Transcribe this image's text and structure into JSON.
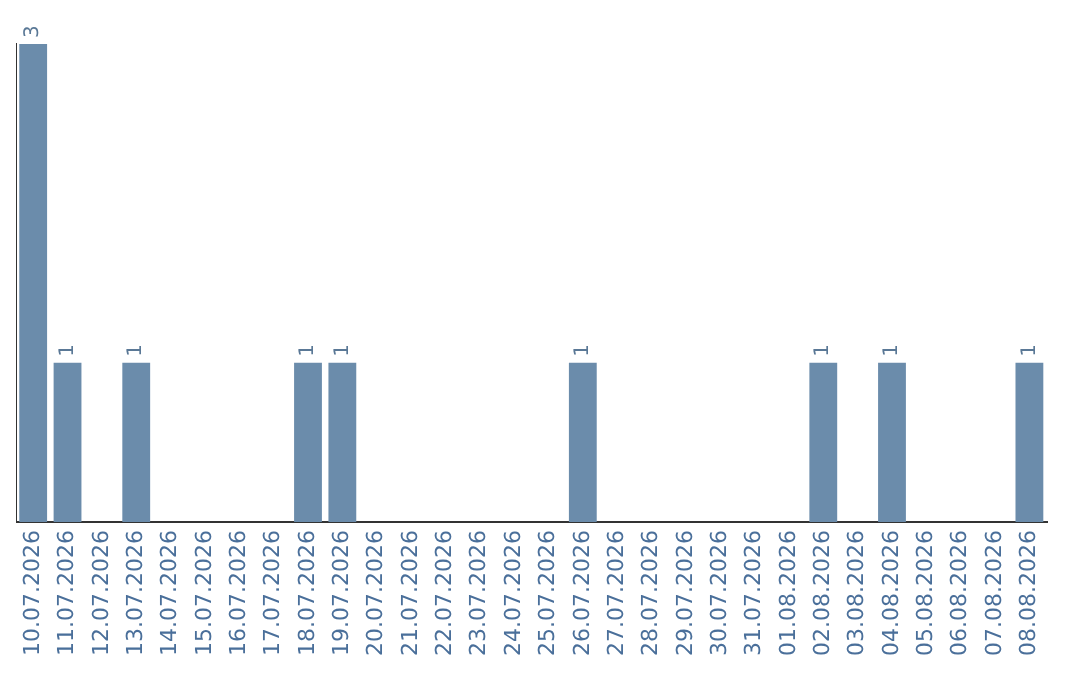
{
  "chart_data": {
    "type": "bar",
    "categories": [
      "10.07.2026",
      "11.07.2026",
      "12.07.2026",
      "13.07.2026",
      "14.07.2026",
      "15.07.2026",
      "16.07.2026",
      "17.07.2026",
      "18.07.2026",
      "19.07.2026",
      "20.07.2026",
      "21.07.2026",
      "22.07.2026",
      "23.07.2026",
      "24.07.2026",
      "25.07.2026",
      "26.07.2026",
      "27.07.2026",
      "28.07.2026",
      "29.07.2026",
      "30.07.2026",
      "31.07.2026",
      "01.08.2026",
      "02.08.2026",
      "03.08.2026",
      "04.08.2026",
      "05.08.2026",
      "06.08.2026",
      "07.08.2026",
      "08.08.2026"
    ],
    "values": [
      3,
      1,
      0,
      1,
      0,
      0,
      0,
      0,
      1,
      1,
      0,
      0,
      0,
      0,
      0,
      0,
      1,
      0,
      0,
      0,
      0,
      0,
      0,
      1,
      0,
      1,
      0,
      0,
      0,
      1
    ],
    "value_labels": [
      "3",
      "1",
      null,
      "1",
      null,
      null,
      null,
      null,
      "1",
      "1",
      null,
      null,
      null,
      null,
      null,
      null,
      "1",
      null,
      null,
      null,
      null,
      null,
      null,
      "1",
      null,
      "1",
      null,
      null,
      null,
      "1"
    ],
    "color": "#6b8cab",
    "tick_labels": "x",
    "grid": false,
    "legend": false
  }
}
